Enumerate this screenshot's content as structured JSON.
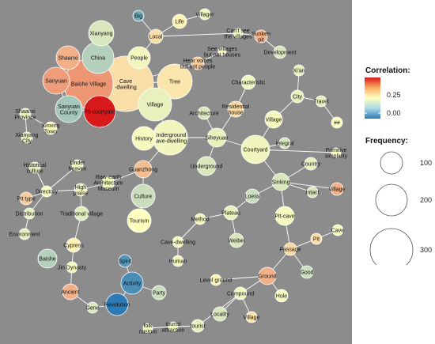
{
  "legend": {
    "correlation_title": "Correlation:",
    "correlation_ticks": [
      "0.25",
      "0.00"
    ],
    "frequency_title": "Frequency:",
    "frequency_ticks": [
      "100",
      "200",
      "300"
    ]
  },
  "colors": {
    "background": "#8c8c8c",
    "edge": "#ffffff",
    "node_outline": "#ffffff",
    "scale_high": "#d7191c",
    "scale_mid": "#ffffbf",
    "scale_low": "#2c7bb6"
  },
  "nodes": [
    {
      "id": "Big",
      "label": "Big",
      "r": 7,
      "corr": -0.18
    },
    {
      "id": "Life",
      "label": "Life",
      "r": 9,
      "corr": 0.02
    },
    {
      "id": "Villager",
      "label": "Villager",
      "r": 7,
      "corr": -0.02
    },
    {
      "id": "Xianyang",
      "label": "Xianyang",
      "r": 16,
      "corr": -0.05
    },
    {
      "id": "Local",
      "label": "Local",
      "r": 9,
      "corr": 0.05
    },
    {
      "id": "Cant-see",
      "label": "Can't see\nthe villages",
      "r": 6,
      "corr": -0.02
    },
    {
      "id": "Sunken pit",
      "label": "Sunken\npit",
      "r": 8,
      "corr": 0.12
    },
    {
      "id": "China",
      "label": "China",
      "r": 20,
      "corr": -0.1
    },
    {
      "id": "Shaanxi",
      "label": "Shaanxi",
      "r": 15,
      "corr": 0.12
    },
    {
      "id": "See villages",
      "label": "See villages\nbut not houses",
      "r": 5,
      "corr": -0.01
    },
    {
      "id": "Development",
      "label": "Development",
      "r": 8,
      "corr": -0.05
    },
    {
      "id": "People",
      "label": "People",
      "r": 14,
      "corr": -0.02
    },
    {
      "id": "Hear voices",
      "label": "Hear voices\nbut not people",
      "r": 8,
      "corr": 0.08
    },
    {
      "id": "Correlation-cave",
      "label": "Cave\n-dwelling",
      "r": 35,
      "corr": 0.05
    },
    {
      "id": "Baishe Village",
      "label": "Baishe Village",
      "r": 31,
      "corr": 0.16
    },
    {
      "id": "Sanyuan",
      "label": "Sanyuan",
      "r": 17,
      "corr": 0.15
    },
    {
      "id": "Tree",
      "label": "Tree",
      "r": 22,
      "corr": 0.04
    },
    {
      "id": "Xi'an",
      "label": "Xi'an",
      "r": 7,
      "corr": -0.03
    },
    {
      "id": "Village",
      "label": "Village",
      "r": 21,
      "corr": -0.03
    },
    {
      "id": "Characteristic",
      "label": "Characteristic",
      "r": 9,
      "corr": -0.02
    },
    {
      "id": "City",
      "label": "City",
      "r": 8,
      "corr": -0.03
    },
    {
      "id": "Sanyuan County",
      "label": "Sanyuan\nCounty",
      "r": 17,
      "corr": -0.12
    },
    {
      "id": "Pit-courtyard",
      "label": "Pit-courtyard",
      "r": 20,
      "corr": 0.35
    },
    {
      "id": "Shaanxi Province",
      "label": "Shaanxi\nProvince",
      "r": 7,
      "corr": -0.03
    },
    {
      "id": "Travel",
      "label": "Travel",
      "r": 7,
      "corr": -0.03
    },
    {
      "id": "Residential house",
      "label": "Residential\nhouse",
      "r": 10,
      "corr": 0.06
    },
    {
      "id": "Xinxing Town",
      "label": "Xinxing\nTown",
      "r": 8,
      "corr": 0.0
    },
    {
      "id": "Xianyang City",
      "label": "Xianyang\nCity",
      "r": 7,
      "corr": -0.03
    },
    {
      "id": "Architecture",
      "label": "Architecture",
      "r": 8,
      "corr": -0.05
    },
    {
      "id": "Village2",
      "label": "Village",
      "r": 11,
      "corr": -0.01
    },
    {
      "id": "##",
      "label": "##",
      "r": 7,
      "corr": 0.0
    },
    {
      "id": "History",
      "label": "History",
      "r": 15,
      "corr": -0.01
    },
    {
      "id": "Underground cave-dwelling",
      "label": "Underground\ncave-dwelling",
      "r": 22,
      "corr": -0.02
    },
    {
      "id": "Siheyuan",
      "label": "Siheyuan",
      "r": 12,
      "corr": -0.03
    },
    {
      "id": "Courtyard",
      "label": "Courtyard",
      "r": 18,
      "corr": -0.02
    },
    {
      "id": "Integral",
      "label": "Integral",
      "r": 7,
      "corr": -0.05
    },
    {
      "id": "Primitive simplicity",
      "label": "Primitive\nsimplicity",
      "r": 6,
      "corr": -0.01
    },
    {
      "id": "Historical culture",
      "label": "Historical\nculture",
      "r": 7,
      "corr": -0.04
    },
    {
      "id": "Under heaven",
      "label": "Under\nheaven",
      "r": 7,
      "corr": -0.02
    },
    {
      "id": "Raw-earth Architecture Museum",
      "label": "Raw-earth\nArchitecture\nMuseum",
      "r": 8,
      "corr": -0.02
    },
    {
      "id": "Guanzhong",
      "label": "Guanzhong",
      "r": 11,
      "corr": 0.1
    },
    {
      "id": "Underground",
      "label": "Underground",
      "r": 12,
      "corr": -0.05
    },
    {
      "id": "Country",
      "label": "Country",
      "r": 8,
      "corr": -0.03
    },
    {
      "id": "Pit type",
      "label": "Pit type",
      "r": 8,
      "corr": 0.08
    },
    {
      "id": "Directory",
      "label": "Directory",
      "r": 7,
      "corr": -0.01
    },
    {
      "id": "High praise",
      "label": "High\npraise",
      "r": 8,
      "corr": -0.02
    },
    {
      "id": "Culture",
      "label": "Culture",
      "r": 15,
      "corr": -0.07
    },
    {
      "id": "Sinking",
      "label": "Sinking",
      "r": 11,
      "corr": -0.05
    },
    {
      "id": "Village3",
      "label": "Village",
      "r": 8,
      "corr": 0.12
    },
    {
      "id": "Intact",
      "label": "Intact",
      "r": 7,
      "corr": -0.05
    },
    {
      "id": "Loess",
      "label": "Loess",
      "r": 9,
      "corr": -0.07
    },
    {
      "id": "Distribution",
      "label": "Distribution",
      "r": 7,
      "corr": -0.03
    },
    {
      "id": "Traditional village",
      "label": "Traditional village",
      "r": 9,
      "corr": -0.04
    },
    {
      "id": "Tourism",
      "label": "Tourism",
      "r": 15,
      "corr": 0.0
    },
    {
      "id": "Method",
      "label": "Method",
      "r": 7,
      "corr": -0.02
    },
    {
      "id": "Plateau",
      "label": "Plateau",
      "r": 9,
      "corr": -0.03
    },
    {
      "id": "Pit-cave",
      "label": "Pit-cave",
      "r": 12,
      "corr": -0.01
    },
    {
      "id": "Cave",
      "label": "Cave",
      "r": 7,
      "corr": -0.01
    },
    {
      "id": "Environment",
      "label": "Environment",
      "r": 7,
      "corr": -0.03
    },
    {
      "id": "Weibei",
      "label": "Weibei",
      "r": 9,
      "corr": -0.05
    },
    {
      "id": "Pit",
      "label": "Pit",
      "r": 7,
      "corr": 0.05
    },
    {
      "id": "Cypress",
      "label": "Cypress",
      "r": 9,
      "corr": 0.02
    },
    {
      "id": "Cave-dwelling2",
      "label": "Cave-dwelling",
      "r": 7,
      "corr": -0.01
    },
    {
      "id": "Passage",
      "label": "Passage",
      "r": 8,
      "corr": 0.06
    },
    {
      "id": "Baishe",
      "label": "Baishe",
      "r": 12,
      "corr": -0.1
    },
    {
      "id": "Jin Dynasty",
      "label": "Jin Dynasty",
      "r": 7,
      "corr": -0.01
    },
    {
      "id": "Spirit",
      "label": "Spirit",
      "r": 8,
      "corr": -0.22
    },
    {
      "id": "Human",
      "label": "Human",
      "r": 7,
      "corr": -0.02
    },
    {
      "id": "Good",
      "label": "Good",
      "r": 8,
      "corr": -0.07
    },
    {
      "id": "Activity",
      "label": "Activity",
      "r": 14,
      "corr": -0.24
    },
    {
      "id": "Level ground",
      "label": "Level ground",
      "r": 7,
      "corr": 0.02
    },
    {
      "id": "Ground",
      "label": "Ground",
      "r": 11,
      "corr": 0.12
    },
    {
      "id": "Party",
      "label": "Party",
      "r": 9,
      "corr": -0.07
    },
    {
      "id": "Ancient",
      "label": "Ancient",
      "r": 10,
      "corr": 0.12
    },
    {
      "id": "Hole",
      "label": "Hole",
      "r": 8,
      "corr": -0.01
    },
    {
      "id": "Gene",
      "label": "Gene",
      "r": 7,
      "corr": -0.05
    },
    {
      "id": "Revolution",
      "label": "Revolution",
      "r": 14,
      "corr": -0.28
    },
    {
      "id": "Compound",
      "label": "Compound",
      "r": 8,
      "corr": -0.02
    },
    {
      "id": "Locality",
      "label": "Locality",
      "r": 9,
      "corr": -0.05
    },
    {
      "id": "Village4",
      "label": "Village",
      "r": 7,
      "corr": 0.04
    },
    {
      "id": "folk custom",
      "label": "folk\ncustom",
      "r": 6,
      "corr": -0.02
    },
    {
      "id": "tourist attraction",
      "label": "tourist\nattraction",
      "r": 6,
      "corr": -0.02
    },
    {
      "id": "tourist",
      "label": "tourist",
      "r": 8,
      "corr": -0.03
    }
  ],
  "edges": [
    [
      "Big",
      "Local"
    ],
    [
      "Life",
      "Local"
    ],
    [
      "Life",
      "Villager"
    ],
    [
      "Xianyang",
      "China"
    ],
    [
      "Local",
      "People"
    ],
    [
      "Cant-see",
      "Local"
    ],
    [
      "Cant-see",
      "Sunken pit"
    ],
    [
      "Sunken pit",
      "Development"
    ],
    [
      "See villages",
      "Hear voices"
    ],
    [
      "People",
      "Correlation-cave"
    ],
    [
      "Hear voices",
      "Correlation-cave"
    ],
    [
      "China",
      "Baishe Village"
    ],
    [
      "Shaanxi",
      "Baishe Village"
    ],
    [
      "China",
      "Correlation-cave"
    ],
    [
      "Baishe Village",
      "Correlation-cave"
    ],
    [
      "Sanyuan",
      "Baishe Village"
    ],
    [
      "Baishe Village",
      "Sanyuan County"
    ],
    [
      "Baishe Village",
      "Pit-courtyard"
    ],
    [
      "Correlation-cave",
      "Tree"
    ],
    [
      "Correlation-cave",
      "Village"
    ],
    [
      "Tree",
      "Village"
    ],
    [
      "Sanyuan",
      "Sanyuan County"
    ],
    [
      "Sanyuan County",
      "Pit-courtyard"
    ],
    [
      "Correlation-cave",
      "Pit-courtyard"
    ],
    [
      "Correlation-cave",
      "Shaanxi"
    ],
    [
      "Village",
      "Underground cave-dwelling"
    ],
    [
      "Shaanxi Province",
      "Xianyang City"
    ],
    [
      "Shaanxi Province",
      "Xinxing Town"
    ],
    [
      "Xi'an",
      "City"
    ],
    [
      "City",
      "Travel"
    ],
    [
      "City",
      "Village2"
    ],
    [
      "Travel",
      "##"
    ],
    [
      "Characteristic",
      "Residential house"
    ],
    [
      "Residential house",
      "Siheyuan"
    ],
    [
      "Architecture",
      "Siheyuan"
    ],
    [
      "History",
      "Underground cave-dwelling"
    ],
    [
      "Underground cave-dwelling",
      "Siheyuan"
    ],
    [
      "Underground cave-dwelling",
      "Guanzhong"
    ],
    [
      "Siheyuan",
      "Courtyard"
    ],
    [
      "Siheyuan",
      "Underground"
    ],
    [
      "Courtyard",
      "Integral"
    ],
    [
      "Courtyard",
      "Primitive simplicity"
    ],
    [
      "Courtyard",
      "Sinking"
    ],
    [
      "Courtyard",
      "Village2"
    ],
    [
      "Guanzhong",
      "Culture"
    ],
    [
      "Guanzhong",
      "Raw-earth Architecture Museum"
    ],
    [
      "Culture",
      "Tourism"
    ],
    [
      "Historical culture",
      "Directory"
    ],
    [
      "Under heaven",
      "Directory"
    ],
    [
      "Directory",
      "Pit type"
    ],
    [
      "Directory",
      "High praise"
    ],
    [
      "Directory",
      "Distribution"
    ],
    [
      "Distribution",
      "Environment"
    ],
    [
      "High praise",
      "Traditional village"
    ],
    [
      "Raw-earth Architecture Museum",
      "High praise"
    ],
    [
      "Sinking",
      "Country"
    ],
    [
      "Sinking",
      "Intact"
    ],
    [
      "Sinking",
      "Village3"
    ],
    [
      "Sinking",
      "Loess"
    ],
    [
      "Sinking",
      "Pit-cave"
    ],
    [
      "Loess",
      "Plateau"
    ],
    [
      "Method",
      "Plateau"
    ],
    [
      "Plateau",
      "Weibei"
    ],
    [
      "Pit-cave",
      "Passage"
    ],
    [
      "Passage",
      "Pit"
    ],
    [
      "Pit",
      "Cave"
    ],
    [
      "Passage",
      "Good"
    ],
    [
      "Passage",
      "Ground"
    ],
    [
      "Method",
      "Cave-dwelling2"
    ],
    [
      "Cave-dwelling2",
      "Human"
    ],
    [
      "Cypress",
      "Jin Dynasty"
    ],
    [
      "Jin Dynasty",
      "Ancient"
    ],
    [
      "Ancient",
      "Gene"
    ],
    [
      "Spirit",
      "Activity"
    ],
    [
      "Activity",
      "Party"
    ],
    [
      "Activity",
      "Revolution"
    ],
    [
      "Gene",
      "Revolution"
    ],
    [
      "Level ground",
      "Ground"
    ],
    [
      "Ground",
      "Compound"
    ],
    [
      "Ground",
      "Hole"
    ],
    [
      "Compound",
      "Locality"
    ],
    [
      "Compound",
      "Village4"
    ],
    [
      "Compound",
      "tourist"
    ],
    [
      "tourist",
      "tourist attraction"
    ],
    [
      "tourist attraction",
      "folk custom"
    ],
    [
      "Traditional village",
      "Cypress"
    ],
    [
      "Xianyang",
      "Baishe Village"
    ]
  ]
}
